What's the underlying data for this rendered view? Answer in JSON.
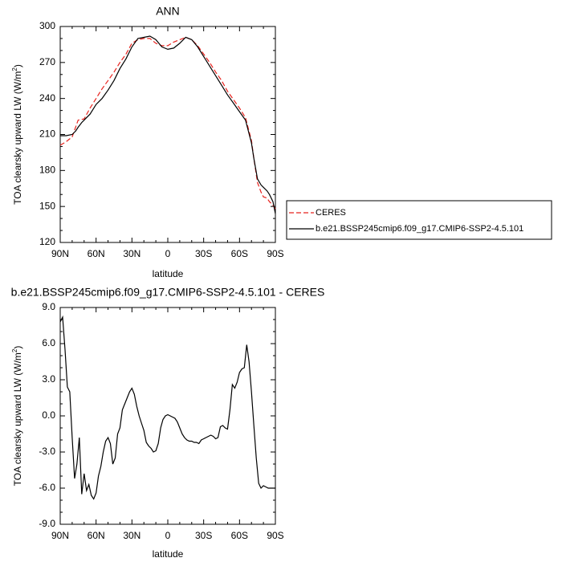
{
  "chart_data": [
    {
      "type": "line",
      "title": "ANN",
      "xlabel": "latitude",
      "ylabel_main": "TOA clearsky upward LW (W/m",
      "ylabel_sup": "2",
      "ylabel_end": ")",
      "xlim": [
        90,
        -90
      ],
      "ylim": [
        120,
        300
      ],
      "xticks": [
        90,
        60,
        30,
        0,
        -30,
        -60,
        -90
      ],
      "xtick_labels": [
        "90N",
        "60N",
        "30N",
        "0",
        "30S",
        "60S",
        "90S"
      ],
      "yticks": [
        120,
        150,
        180,
        210,
        240,
        270,
        300
      ],
      "ytick_labels": [
        "120",
        "150",
        "180",
        "210",
        "240",
        "270",
        "300"
      ],
      "legend_placement": "right",
      "series": [
        {
          "name": "CERES",
          "color": "#e8231e",
          "dash": "dashed",
          "x": [
            90,
            85,
            80,
            75,
            70,
            65,
            60,
            55,
            50,
            45,
            40,
            35,
            30,
            25,
            20,
            15,
            10,
            5,
            0,
            -5,
            -10,
            -15,
            -20,
            -25,
            -30,
            -35,
            -40,
            -45,
            -50,
            -55,
            -60,
            -65,
            -70,
            -72,
            -75,
            -78,
            -80,
            -83,
            -85,
            -88,
            -90
          ],
          "y": [
            201,
            204,
            208,
            222,
            223,
            232,
            240,
            248,
            255,
            262,
            270,
            277,
            286,
            289,
            290,
            290,
            286,
            284,
            284,
            287,
            289,
            291,
            289,
            284,
            277,
            270,
            262,
            255,
            246,
            239,
            232,
            224,
            205,
            190,
            170,
            162,
            158,
            157,
            154,
            151,
            148
          ]
        },
        {
          "name": "b.e21.BSSP245cmip6.f09_g17.CMIP6-SSP2-4.5.101",
          "color": "#000000",
          "dash": "solid",
          "x": [
            90,
            85,
            80,
            77,
            75,
            72,
            70,
            65,
            60,
            55,
            50,
            45,
            40,
            35,
            30,
            25,
            20,
            15,
            10,
            5,
            0,
            -5,
            -10,
            -15,
            -20,
            -25,
            -30,
            -35,
            -40,
            -45,
            -50,
            -55,
            -60,
            -65,
            -70,
            -72,
            -75,
            -78,
            -80,
            -83,
            -85,
            -88,
            -90
          ],
          "y": [
            209,
            209,
            210,
            213,
            216,
            220,
            222,
            227,
            235,
            240,
            247,
            255,
            265,
            273,
            283,
            290,
            291,
            292,
            289,
            283,
            281,
            282,
            286,
            291,
            289,
            283,
            275,
            267,
            259,
            251,
            243,
            236,
            229,
            222,
            203,
            190,
            173,
            168,
            166,
            163,
            160,
            154,
            144
          ]
        }
      ]
    },
    {
      "type": "line",
      "title": "b.e21.BSSP245cmip6.f09_g17.CMIP6-SSP2-4.5.101 - CERES",
      "xlabel": "latitude",
      "ylabel_main": "TOA clearsky upward LW (W/m",
      "ylabel_sup": "2",
      "ylabel_end": ")",
      "xlim": [
        90,
        -90
      ],
      "ylim": [
        -9,
        9
      ],
      "xticks": [
        90,
        60,
        30,
        0,
        -30,
        -60,
        -90
      ],
      "xtick_labels": [
        "90N",
        "60N",
        "30N",
        "0",
        "30S",
        "60S",
        "90S"
      ],
      "yticks": [
        -9,
        -6,
        -3,
        0,
        3,
        6,
        9
      ],
      "ytick_labels": [
        "-9.0",
        "-6.0",
        "-3.0",
        "0.0",
        "3.0",
        "6.0",
        "9.0"
      ],
      "series": [
        {
          "color": "#000000",
          "dash": "solid",
          "x": [
            90,
            88,
            86,
            84,
            82,
            80,
            78,
            76,
            74,
            72,
            70,
            68,
            66,
            64,
            62,
            60,
            58,
            56,
            54,
            52,
            50,
            48,
            46,
            44,
            42,
            40,
            38,
            36,
            34,
            32,
            30,
            28,
            26,
            24,
            22,
            20,
            18,
            16,
            14,
            12,
            10,
            8,
            6,
            4,
            2,
            0,
            -2,
            -4,
            -6,
            -8,
            -10,
            -12,
            -14,
            -16,
            -18,
            -20,
            -22,
            -24,
            -26,
            -28,
            -30,
            -32,
            -34,
            -36,
            -38,
            -40,
            -42,
            -44,
            -46,
            -48,
            -50,
            -52,
            -54,
            -56,
            -58,
            -60,
            -62,
            -64,
            -66,
            -68,
            -70,
            -72,
            -74,
            -76,
            -78,
            -80,
            -82,
            -84,
            -86,
            -88,
            -90
          ],
          "y": [
            7.8,
            8.2,
            5.5,
            2.4,
            2.0,
            -1.8,
            -5.2,
            -4.0,
            -1.8,
            -6.5,
            -4.8,
            -6.2,
            -5.7,
            -6.6,
            -6.9,
            -6.4,
            -5.0,
            -4.2,
            -3.0,
            -2.1,
            -1.8,
            -2.3,
            -4.0,
            -3.5,
            -1.5,
            -1.0,
            0.5,
            1.0,
            1.5,
            2.0,
            2.3,
            1.8,
            0.8,
            0.0,
            -0.6,
            -1.2,
            -2.2,
            -2.5,
            -2.7,
            -3.0,
            -2.9,
            -2.3,
            -1.0,
            -0.3,
            0.0,
            0.1,
            0.0,
            -0.1,
            -0.2,
            -0.5,
            -1.0,
            -1.5,
            -1.8,
            -2.0,
            -2.1,
            -2.1,
            -2.2,
            -2.2,
            -2.3,
            -2.0,
            -1.9,
            -1.8,
            -1.7,
            -1.6,
            -1.7,
            -1.9,
            -1.8,
            -0.9,
            -0.8,
            -1.0,
            -1.1,
            0.5,
            2.6,
            2.3,
            2.8,
            3.6,
            3.9,
            4.0,
            5.9,
            4.5,
            2.0,
            -0.8,
            -3.5,
            -5.6,
            -6.0,
            -5.8,
            -5.9,
            -6.0,
            -6.0,
            -6.0,
            -6.0
          ]
        }
      ]
    }
  ]
}
